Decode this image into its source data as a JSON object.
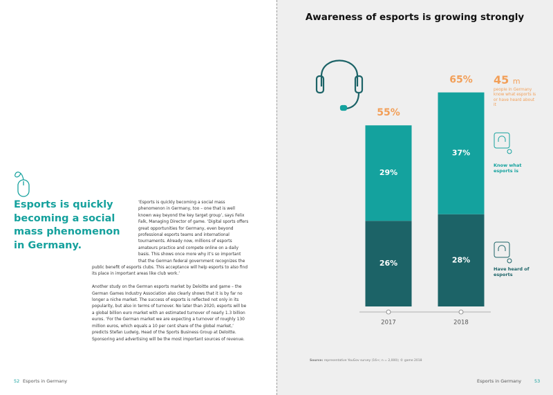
{
  "left_page": {
    "heading": "Esports is quickly becoming a social mass phenomenon in Germany.",
    "paragraphs": [
      "‘Esports is quickly becoming a social mass phenomenon in Germany, too – one that is well known way beyond the key target group’, says Felix Falk, Managing Director of game. ‘Digital sports offers great opportunities for Germany, even beyond professional esports teams and international tournaments. Already now, millions of esports amateurs practice and compete online on a daily basis. This shows once more why it’s so important that the German federal government recognizes the public benefit of esports clubs. This acceptance will help esports to also find its place in important areas like club work.’",
      "Another study on the German esports market by Deloitte and game – the German Games Industry Association also clearly shows that it is by far no longer a niche market. The success of esports is reflected not only in its popularity, but also in terms of turnover. No later than 2020, esports will be a global billion euro market with an estimated turnover of nearly 1.3 billion euros. ‘For the German market we are expecting a turnover of roughly 130 million euros, which equals a 10 per cent share of the global market,’ predicts Stefan Ludwig, Head of the Sports Business Group at Deloitte. Sponsoring and advertising will be the most important sources of revenue."
    ],
    "page_number": "52",
    "footer": "Esports in Germany"
  },
  "right_page": {
    "source_label": "Source:",
    "source_text": "representative YouGov survey (16+; n = 2,000); © game 2018",
    "footer": "Esports in Germany",
    "page_number": "53"
  },
  "chart_data": {
    "type": "stacked_bar",
    "title": "Awareness of esports is growing strongly",
    "categories": [
      "2017",
      "2018"
    ],
    "series": [
      {
        "name": "Have heard of esports",
        "color": "#1c6367",
        "values": [
          26,
          28
        ],
        "value_labels": [
          "26%",
          "28%"
        ]
      },
      {
        "name": "Know what esports is",
        "color": "#14a29e",
        "values": [
          29,
          37
        ],
        "value_labels": [
          "29%",
          "37%"
        ]
      }
    ],
    "total_labels": [
      "55%",
      "65%"
    ],
    "annotation": {
      "value": "45",
      "unit": "m",
      "text": "people in Germany know what esports is or have heard about it"
    }
  }
}
